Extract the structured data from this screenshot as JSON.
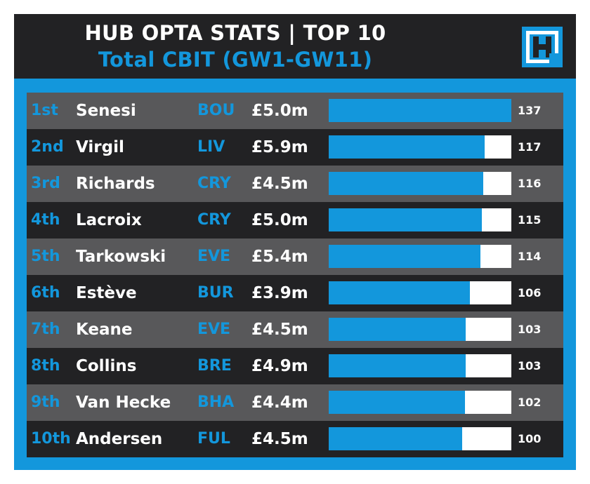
{
  "header": {
    "title": "HUB OPTA STATS | TOP 10",
    "subtitle": "Total CBIT (GW1-GW11)"
  },
  "colors": {
    "accent": "#1397DC",
    "dark_row": "#222224",
    "light_row": "#58585A",
    "text": "#FFFFFF"
  },
  "logo": {
    "icon": "hub-h-logo-icon"
  },
  "chart_data": {
    "type": "bar",
    "orientation": "horizontal",
    "title": "HUB OPTA STATS | TOP 10",
    "subtitle": "Total CBIT (GW1-GW11)",
    "xlim": [
      0,
      137
    ],
    "grid": false,
    "rows": [
      {
        "rank": "1st",
        "player": "Senesi",
        "team": "BOU",
        "price": "£5.0m",
        "value": 137
      },
      {
        "rank": "2nd",
        "player": "Virgil",
        "team": "LIV",
        "price": "£5.9m",
        "value": 117
      },
      {
        "rank": "3rd",
        "player": "Richards",
        "team": "CRY",
        "price": "£4.5m",
        "value": 116
      },
      {
        "rank": "4th",
        "player": "Lacroix",
        "team": "CRY",
        "price": "£5.0m",
        "value": 115
      },
      {
        "rank": "5th",
        "player": "Tarkowski",
        "team": "EVE",
        "price": "£5.4m",
        "value": 114
      },
      {
        "rank": "6th",
        "player": "Estève",
        "team": "BUR",
        "price": "£3.9m",
        "value": 106
      },
      {
        "rank": "7th",
        "player": "Keane",
        "team": "EVE",
        "price": "£4.5m",
        "value": 103
      },
      {
        "rank": "8th",
        "player": "Collins",
        "team": "BRE",
        "price": "£4.9m",
        "value": 103
      },
      {
        "rank": "9th",
        "player": "Van Hecke",
        "team": "BHA",
        "price": "£4.4m",
        "value": 102
      },
      {
        "rank": "10th",
        "player": "Andersen",
        "team": "FUL",
        "price": "£4.5m",
        "value": 100
      }
    ]
  }
}
